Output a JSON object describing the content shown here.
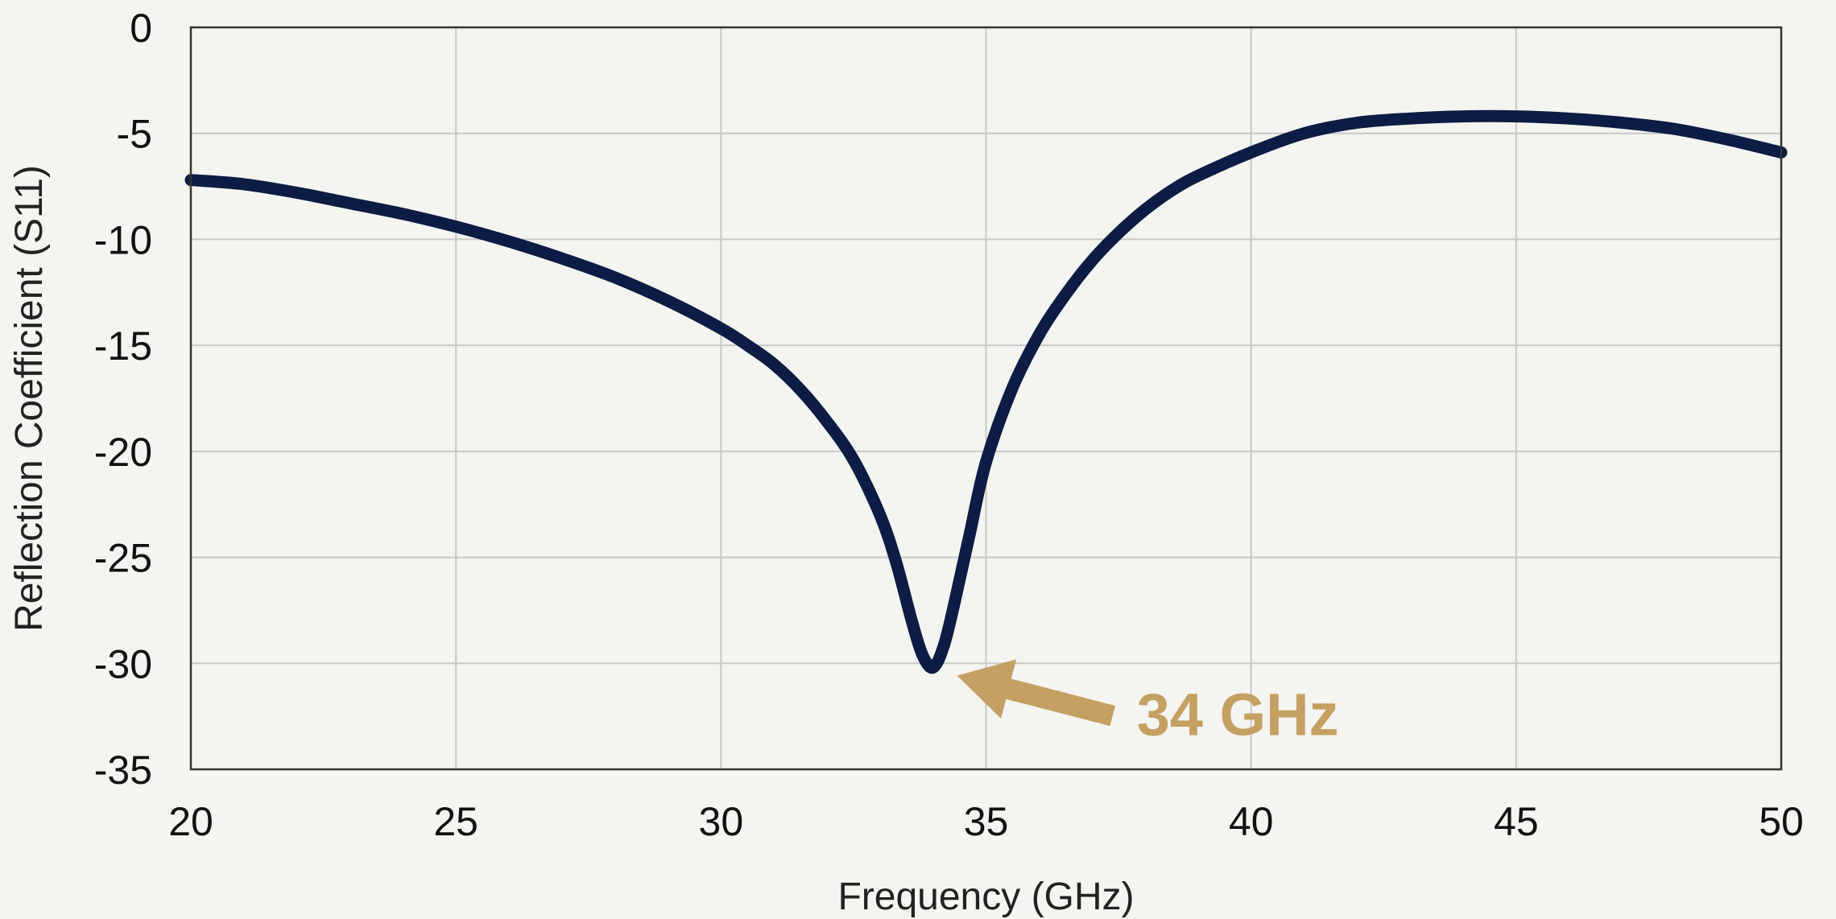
{
  "chart_data": {
    "type": "line",
    "title": "",
    "xlabel": "Frequency (GHz)",
    "ylabel": "Reflection Coefficient (S11)",
    "xlim": [
      20,
      50
    ],
    "ylim": [
      -35,
      0
    ],
    "x_ticks": [
      20,
      25,
      30,
      35,
      40,
      45,
      50
    ],
    "y_ticks": [
      0,
      -5,
      -10,
      -15,
      -20,
      -25,
      -30,
      -35
    ],
    "grid": true,
    "legend": "none",
    "series": [
      {
        "color": "#0c1c44",
        "x": [
          20,
          21,
          22,
          23,
          24,
          25,
          26,
          27,
          28,
          29,
          30,
          30.5,
          31,
          31.5,
          32,
          32.5,
          33,
          33.3,
          33.6,
          33.8,
          34,
          34.2,
          34.4,
          34.7,
          35,
          35.5,
          36,
          36.5,
          37,
          37.5,
          38,
          38.5,
          39,
          40,
          41,
          42,
          43,
          44,
          45,
          46,
          47,
          48,
          49,
          50
        ],
        "y": [
          -7.2,
          -7.4,
          -7.8,
          -8.3,
          -8.8,
          -9.4,
          -10.1,
          -10.9,
          -11.8,
          -12.9,
          -14.2,
          -15.0,
          -15.9,
          -17.1,
          -18.6,
          -20.4,
          -23.0,
          -25.2,
          -28.0,
          -29.6,
          -30.2,
          -29.2,
          -27.2,
          -23.8,
          -20.5,
          -17.0,
          -14.5,
          -12.6,
          -11.0,
          -9.7,
          -8.6,
          -7.7,
          -7.0,
          -5.9,
          -5.0,
          -4.5,
          -4.3,
          -4.2,
          -4.2,
          -4.3,
          -4.5,
          -4.8,
          -5.3,
          -5.9
        ]
      }
    ],
    "annotations": [
      {
        "text": "34 GHz",
        "x": 34,
        "y": -30.2,
        "color": "#c4a062"
      }
    ]
  }
}
